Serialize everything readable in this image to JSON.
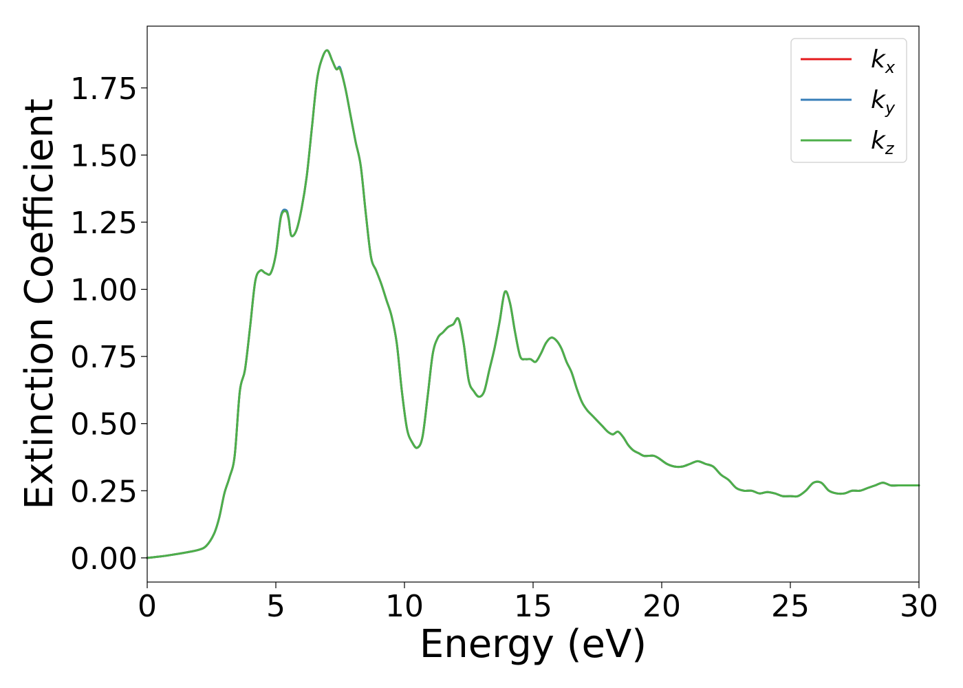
{
  "chart_data": {
    "type": "line",
    "title": "",
    "xlabel": "Energy (eV)",
    "ylabel": "Extinction Coefficient",
    "xlim": [
      0,
      30
    ],
    "ylim": [
      -0.09,
      1.98
    ],
    "xticks": [
      0,
      5,
      10,
      15,
      20,
      25,
      30
    ],
    "xtick_labels": [
      "0",
      "5",
      "10",
      "15",
      "20",
      "25",
      "30"
    ],
    "yticks": [
      0.0,
      0.25,
      0.5,
      0.75,
      1.0,
      1.25,
      1.5,
      1.75
    ],
    "ytick_labels": [
      "0.00",
      "0.25",
      "0.50",
      "0.75",
      "1.00",
      "1.25",
      "1.50",
      "1.75"
    ],
    "grid": false,
    "legend": "top-right",
    "x": [
      0,
      0.5,
      1,
      1.5,
      2,
      2.3,
      2.6,
      2.8,
      3.0,
      3.2,
      3.4,
      3.6,
      3.8,
      4.0,
      4.2,
      4.4,
      4.6,
      4.8,
      5.0,
      5.2,
      5.4,
      5.5,
      5.6,
      5.8,
      6.0,
      6.2,
      6.4,
      6.6,
      6.8,
      7.0,
      7.2,
      7.35,
      7.5,
      7.7,
      7.9,
      8.1,
      8.3,
      8.5,
      8.7,
      8.9,
      9.1,
      9.3,
      9.5,
      9.7,
      9.9,
      10.1,
      10.3,
      10.5,
      10.7,
      10.9,
      11.1,
      11.3,
      11.5,
      11.7,
      11.9,
      12.1,
      12.3,
      12.5,
      12.7,
      12.9,
      13.1,
      13.3,
      13.5,
      13.7,
      13.9,
      14.1,
      14.3,
      14.5,
      14.7,
      14.9,
      15.1,
      15.3,
      15.5,
      15.7,
      15.9,
      16.1,
      16.3,
      16.5,
      16.7,
      16.9,
      17.1,
      17.3,
      17.5,
      17.7,
      17.9,
      18.1,
      18.3,
      18.5,
      18.7,
      18.9,
      19.1,
      19.3,
      19.5,
      19.7,
      19.9,
      20.2,
      20.5,
      20.8,
      21.1,
      21.4,
      21.7,
      22.0,
      22.3,
      22.6,
      22.9,
      23.2,
      23.5,
      23.8,
      24.1,
      24.4,
      24.7,
      25.0,
      25.3,
      25.6,
      25.9,
      26.2,
      26.5,
      26.8,
      27.1,
      27.4,
      27.7,
      28.0,
      28.3,
      28.6,
      28.9,
      29.2,
      29.5,
      29.8,
      30.0
    ],
    "series": [
      {
        "name": "k_x",
        "color": "#e41a1c",
        "values": [
          0.0,
          0.005,
          0.012,
          0.02,
          0.03,
          0.045,
          0.09,
          0.15,
          0.24,
          0.3,
          0.38,
          0.62,
          0.7,
          0.86,
          1.03,
          1.07,
          1.06,
          1.06,
          1.13,
          1.27,
          1.29,
          1.26,
          1.2,
          1.22,
          1.3,
          1.42,
          1.6,
          1.78,
          1.86,
          1.89,
          1.85,
          1.82,
          1.82,
          1.75,
          1.65,
          1.55,
          1.46,
          1.28,
          1.12,
          1.07,
          1.02,
          0.96,
          0.9,
          0.8,
          0.62,
          0.48,
          0.43,
          0.41,
          0.45,
          0.6,
          0.76,
          0.82,
          0.84,
          0.86,
          0.87,
          0.89,
          0.8,
          0.66,
          0.62,
          0.6,
          0.62,
          0.7,
          0.78,
          0.88,
          0.99,
          0.95,
          0.84,
          0.75,
          0.74,
          0.74,
          0.73,
          0.76,
          0.8,
          0.82,
          0.81,
          0.78,
          0.73,
          0.69,
          0.63,
          0.58,
          0.55,
          0.53,
          0.51,
          0.49,
          0.47,
          0.46,
          0.47,
          0.45,
          0.42,
          0.4,
          0.39,
          0.38,
          0.38,
          0.38,
          0.37,
          0.35,
          0.34,
          0.34,
          0.35,
          0.36,
          0.35,
          0.34,
          0.31,
          0.29,
          0.26,
          0.25,
          0.25,
          0.24,
          0.245,
          0.24,
          0.23,
          0.23,
          0.23,
          0.25,
          0.28,
          0.28,
          0.25,
          0.24,
          0.24,
          0.25,
          0.25,
          0.26,
          0.27,
          0.28,
          0.27,
          0.27,
          0.27,
          0.27,
          0.27
        ]
      },
      {
        "name": "k_y",
        "color": "#377eb8",
        "values": [
          0.0,
          0.005,
          0.012,
          0.02,
          0.03,
          0.045,
          0.09,
          0.15,
          0.24,
          0.3,
          0.38,
          0.62,
          0.7,
          0.86,
          1.03,
          1.07,
          1.06,
          1.06,
          1.13,
          1.275,
          1.295,
          1.265,
          1.2,
          1.22,
          1.3,
          1.42,
          1.6,
          1.78,
          1.86,
          1.89,
          1.85,
          1.82,
          1.825,
          1.75,
          1.65,
          1.55,
          1.46,
          1.28,
          1.12,
          1.07,
          1.02,
          0.96,
          0.9,
          0.8,
          0.62,
          0.48,
          0.43,
          0.41,
          0.45,
          0.6,
          0.76,
          0.82,
          0.84,
          0.86,
          0.87,
          0.89,
          0.8,
          0.66,
          0.62,
          0.6,
          0.62,
          0.7,
          0.78,
          0.88,
          0.99,
          0.95,
          0.84,
          0.75,
          0.74,
          0.74,
          0.73,
          0.76,
          0.8,
          0.82,
          0.81,
          0.78,
          0.73,
          0.69,
          0.63,
          0.58,
          0.55,
          0.53,
          0.51,
          0.49,
          0.47,
          0.46,
          0.47,
          0.45,
          0.42,
          0.4,
          0.39,
          0.38,
          0.38,
          0.38,
          0.37,
          0.35,
          0.34,
          0.34,
          0.35,
          0.36,
          0.35,
          0.34,
          0.31,
          0.29,
          0.26,
          0.25,
          0.25,
          0.24,
          0.245,
          0.24,
          0.23,
          0.23,
          0.23,
          0.25,
          0.28,
          0.28,
          0.25,
          0.24,
          0.24,
          0.25,
          0.25,
          0.26,
          0.27,
          0.28,
          0.27,
          0.27,
          0.27,
          0.27,
          0.27
        ]
      },
      {
        "name": "k_z",
        "color": "#4daf4a",
        "values": [
          0.0,
          0.005,
          0.012,
          0.02,
          0.03,
          0.045,
          0.09,
          0.15,
          0.24,
          0.3,
          0.38,
          0.62,
          0.7,
          0.86,
          1.03,
          1.07,
          1.06,
          1.06,
          1.13,
          1.27,
          1.29,
          1.26,
          1.2,
          1.22,
          1.3,
          1.42,
          1.6,
          1.78,
          1.86,
          1.89,
          1.85,
          1.82,
          1.82,
          1.75,
          1.65,
          1.55,
          1.46,
          1.28,
          1.12,
          1.07,
          1.02,
          0.96,
          0.9,
          0.8,
          0.62,
          0.48,
          0.43,
          0.41,
          0.45,
          0.6,
          0.76,
          0.82,
          0.84,
          0.86,
          0.87,
          0.89,
          0.8,
          0.66,
          0.62,
          0.6,
          0.62,
          0.7,
          0.78,
          0.88,
          0.99,
          0.95,
          0.84,
          0.75,
          0.74,
          0.74,
          0.73,
          0.76,
          0.8,
          0.82,
          0.81,
          0.78,
          0.73,
          0.69,
          0.63,
          0.58,
          0.55,
          0.53,
          0.51,
          0.49,
          0.47,
          0.46,
          0.47,
          0.45,
          0.42,
          0.4,
          0.39,
          0.38,
          0.38,
          0.38,
          0.37,
          0.35,
          0.34,
          0.34,
          0.35,
          0.36,
          0.35,
          0.34,
          0.31,
          0.29,
          0.26,
          0.25,
          0.25,
          0.24,
          0.245,
          0.24,
          0.23,
          0.23,
          0.23,
          0.25,
          0.28,
          0.28,
          0.25,
          0.24,
          0.24,
          0.25,
          0.25,
          0.26,
          0.27,
          0.28,
          0.27,
          0.27,
          0.27,
          0.27,
          0.27
        ]
      }
    ],
    "legend_entries": [
      {
        "base": "k",
        "sub": "x",
        "color": "#e41a1c"
      },
      {
        "base": "k",
        "sub": "y",
        "color": "#377eb8"
      },
      {
        "base": "k",
        "sub": "z",
        "color": "#4daf4a"
      }
    ]
  }
}
